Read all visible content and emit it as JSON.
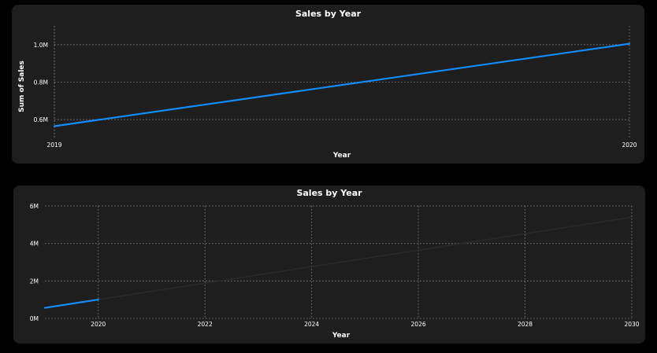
{
  "chart_data": [
    {
      "type": "line",
      "title": "Sales by Year",
      "xlabel": "Year",
      "ylabel": "Sum of Sales",
      "x": [
        2019,
        2020
      ],
      "y": [
        565000,
        1005000
      ],
      "xlim": [
        2019,
        2020
      ],
      "ylim": [
        500000,
        1100000
      ],
      "xticks": [
        2019,
        2020
      ],
      "xtick_labels": [
        "2019",
        "2020"
      ],
      "yticks": [
        600000,
        800000,
        1000000
      ],
      "ytick_labels": [
        "0.6M",
        "0.8M",
        "1.0M"
      ],
      "grid": true,
      "line_color": "#118dff"
    },
    {
      "type": "line",
      "title": "Sales by Year",
      "xlabel": "Year",
      "ylabel": "",
      "x": [
        2019,
        2020
      ],
      "y": [
        565000,
        1005000
      ],
      "forecast": {
        "x": [
          2020,
          2030
        ],
        "y": [
          1005000,
          5400000
        ]
      },
      "xlim": [
        2019,
        2030
      ],
      "ylim": [
        0,
        6000000
      ],
      "xticks": [
        2020,
        2022,
        2024,
        2026,
        2028,
        2030
      ],
      "xtick_labels": [
        "2020",
        "2022",
        "2024",
        "2026",
        "2028",
        "2030"
      ],
      "yticks": [
        0,
        2000000,
        4000000,
        6000000
      ],
      "ytick_labels": [
        "0M",
        "2M",
        "4M",
        "6M"
      ],
      "grid": true,
      "line_color": "#118dff",
      "forecast_color": "#2a2a2a"
    }
  ]
}
